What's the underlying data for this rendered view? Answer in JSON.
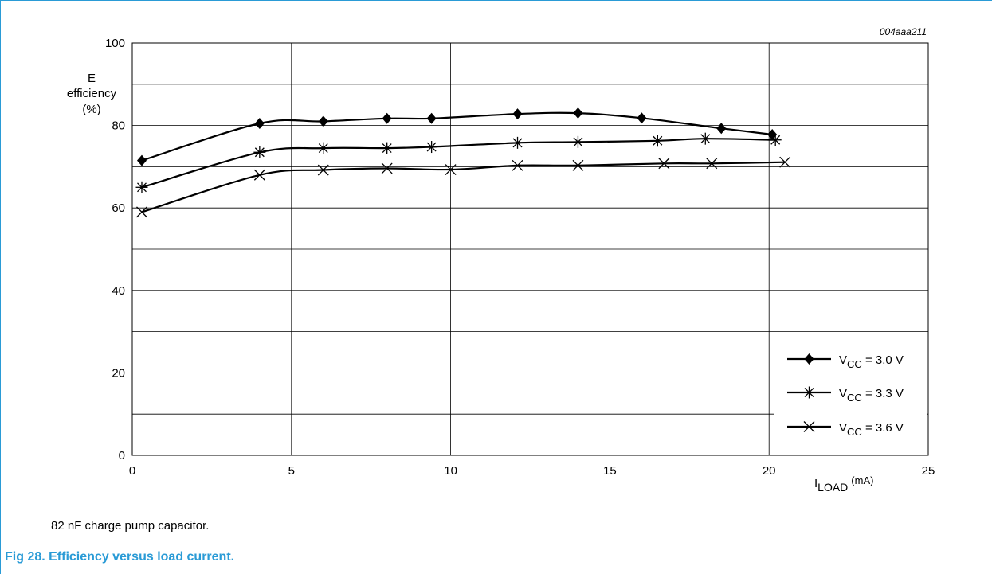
{
  "figure": {
    "id": "004aaa211",
    "note": "82 nF charge pump capacitor.",
    "caption": "Fig 28.  Efficiency versus load current."
  },
  "chart_data": {
    "type": "line",
    "title": "",
    "xlabel": {
      "main": "I",
      "sub": "LOAD",
      "unit": "(mA)"
    },
    "ylabel": [
      "E",
      "efficiency",
      "(%)"
    ],
    "xlim": [
      0,
      25
    ],
    "ylim": [
      0,
      100
    ],
    "x_ticks": [
      0,
      5,
      10,
      15,
      20,
      25
    ],
    "y_ticks": [
      0,
      20,
      40,
      60,
      80,
      100
    ],
    "grid": true,
    "legend_position": "bottom-right",
    "series": [
      {
        "name": "V_CC = 3.0 V",
        "legend": {
          "main": "V",
          "sub": "CC",
          "rest": " = 3.0 V"
        },
        "marker": "diamond",
        "x": [
          0.3,
          4.0,
          6.0,
          8.0,
          9.4,
          12.1,
          14.0,
          16.0,
          18.5,
          20.1
        ],
        "y": [
          71.5,
          80.5,
          81.0,
          81.7,
          81.7,
          82.8,
          83.0,
          81.8,
          79.3,
          77.8
        ]
      },
      {
        "name": "V_CC = 3.3 V",
        "legend": {
          "main": "V",
          "sub": "CC",
          "rest": " = 3.3 V"
        },
        "marker": "asterisk",
        "x": [
          0.3,
          4.0,
          6.0,
          8.0,
          9.4,
          12.1,
          14.0,
          16.5,
          18.0,
          20.2
        ],
        "y": [
          65.0,
          73.5,
          74.5,
          74.5,
          74.8,
          75.8,
          76.0,
          76.3,
          76.8,
          76.5
        ]
      },
      {
        "name": "V_CC = 3.6 V",
        "legend": {
          "main": "V",
          "sub": "CC",
          "rest": " = 3.6 V"
        },
        "marker": "cross",
        "x": [
          0.3,
          4.0,
          6.0,
          8.0,
          10.0,
          12.1,
          14.0,
          16.7,
          18.2,
          20.5
        ],
        "y": [
          59.0,
          68.0,
          69.2,
          69.6,
          69.3,
          70.3,
          70.3,
          70.8,
          70.8,
          71.1
        ]
      }
    ]
  }
}
